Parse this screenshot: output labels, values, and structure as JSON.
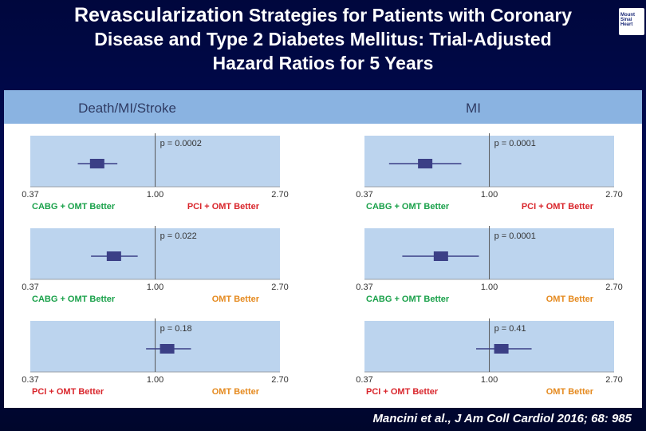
{
  "slide": {
    "title_line1_big": "Revascularization",
    "title_line1_rest": "Strategies for Patients with Coronary",
    "title_line2": "Disease and Type 2 Diabetes Mellitus: Trial-Adjusted",
    "title_line3": "Hazard Ratios for 5 Years",
    "logo_lines": [
      "Mount",
      "Sinai",
      "Heart"
    ],
    "citation": "Mancini et al., J Am Coll Cardiol 2016; 68: 985"
  },
  "colors": {
    "header_band": "#8ab3e1",
    "plot_bg": "#bcd4ee",
    "marker": "#3b3f86",
    "label_green": "#1aa14a",
    "label_red": "#d9262c",
    "label_orange": "#e58a1f",
    "axis_text": "#333333"
  },
  "chart_data": [
    {
      "type": "forest",
      "panel_header": "Death/MI/Stroke",
      "x_scale": "log",
      "xlim": [
        0.37,
        2.7
      ],
      "ticks": [
        "0.37",
        "1.00",
        "2.70"
      ],
      "rows": [
        {
          "hr": 0.63,
          "ci": [
            0.54,
            0.74
          ],
          "p_label": "p = 0.0002",
          "left_label": "CABG + OMT Better",
          "right_label": "PCI + OMT Better",
          "left_color": "label_green",
          "right_color": "label_red"
        },
        {
          "hr": 0.72,
          "ci": [
            0.6,
            0.87
          ],
          "p_label": "p = 0.022",
          "left_label": "CABG + OMT Better",
          "right_label": "OMT Better",
          "left_color": "label_green",
          "right_color": "label_orange"
        },
        {
          "hr": 1.1,
          "ci": [
            0.93,
            1.33
          ],
          "p_label": "p = 0.18",
          "left_label": "PCI + OMT Better",
          "right_label": "OMT Better",
          "left_color": "label_red",
          "right_color": "label_orange"
        }
      ]
    },
    {
      "type": "forest",
      "panel_header": "MI",
      "x_scale": "log",
      "xlim": [
        0.37,
        2.7
      ],
      "ticks": [
        "0.37",
        "1.00",
        "2.70"
      ],
      "rows": [
        {
          "hr": 0.6,
          "ci": [
            0.45,
            0.8
          ],
          "p_label": "p = 0.0001",
          "left_label": "CABG + OMT Better",
          "right_label": "PCI + OMT Better",
          "left_color": "label_green",
          "right_color": "label_red"
        },
        {
          "hr": 0.68,
          "ci": [
            0.5,
            0.92
          ],
          "p_label": "p = 0.0001",
          "left_label": "CABG + OMT Better",
          "right_label": "OMT Better",
          "left_color": "label_green",
          "right_color": "label_orange"
        },
        {
          "hr": 1.1,
          "ci": [
            0.9,
            1.4
          ],
          "p_label": "p = 0.41",
          "left_label": "PCI + OMT Better",
          "right_label": "OMT Better",
          "left_color": "label_red",
          "right_color": "label_orange"
        }
      ]
    }
  ]
}
